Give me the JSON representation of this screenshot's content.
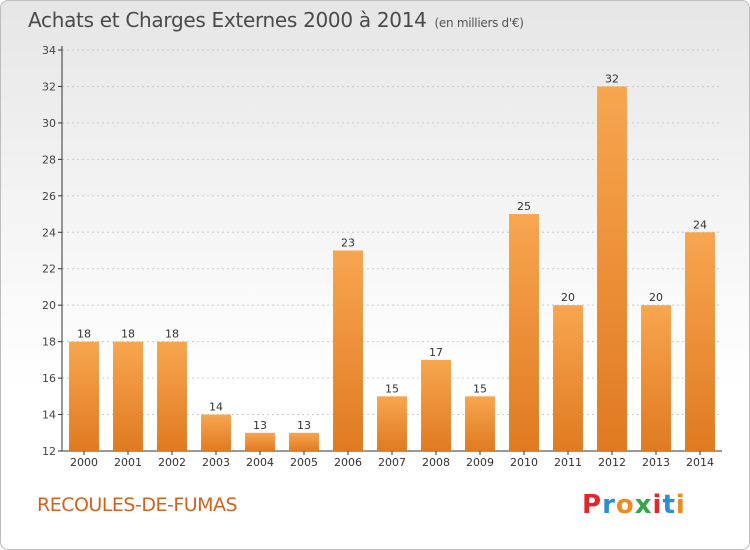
{
  "header": {
    "title": "Achats et Charges Externes 2000 à 2014",
    "subtitle": "(en milliers d'€)"
  },
  "footer": {
    "commune": "RECOULES-DE-FUMAS",
    "logo_letters": [
      "P",
      "r",
      "o",
      "x",
      "i",
      "t",
      "i"
    ],
    "logo_colors": [
      "#e3262c",
      "#2c8fd6",
      "#f08a1c",
      "#35a548",
      "#e3262c",
      "#2c8fd6",
      "#f08a1c"
    ]
  },
  "colors": {
    "bar_light": "#f7a650",
    "bar_dark": "#e07a20",
    "grid": "#cccccc",
    "axis": "#333333"
  },
  "chart_data": {
    "type": "bar",
    "title": "Achats et Charges Externes 2000 à 2014",
    "subtitle": "(en milliers d'€)",
    "xlabel": "",
    "ylabel": "",
    "categories": [
      "2000",
      "2001",
      "2002",
      "2003",
      "2004",
      "2005",
      "2006",
      "2007",
      "2008",
      "2009",
      "2010",
      "2011",
      "2012",
      "2013",
      "2014"
    ],
    "values": [
      18,
      18,
      18,
      14,
      13,
      13,
      23,
      15,
      17,
      15,
      25,
      20,
      32,
      20,
      24
    ],
    "ylim": [
      12,
      34
    ],
    "yticks": [
      12,
      14,
      16,
      18,
      20,
      22,
      24,
      26,
      28,
      30,
      32,
      34
    ],
    "grid": true,
    "data_labels": true
  }
}
